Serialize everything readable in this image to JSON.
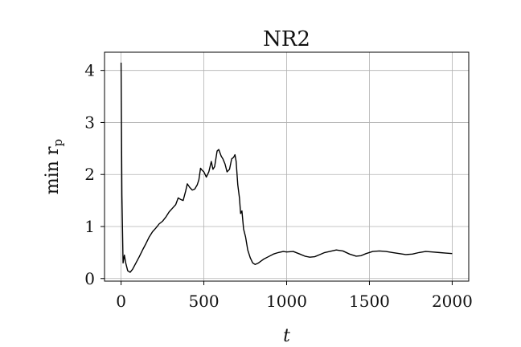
{
  "chart_data": {
    "type": "line",
    "title": "NR2",
    "xlabel": "t",
    "ylabel_main": "min r",
    "ylabel_sub": "p",
    "xlim": [
      -100,
      2100
    ],
    "ylim": [
      -0.05,
      4.35
    ],
    "xticks": [
      0,
      500,
      1000,
      1500,
      2000
    ],
    "yticks": [
      0,
      1,
      2,
      3,
      4
    ],
    "grid": true,
    "series": [
      {
        "color": "#000000",
        "points": [
          [
            0,
            4.15
          ],
          [
            5,
            1.6
          ],
          [
            12,
            0.3
          ],
          [
            20,
            0.45
          ],
          [
            28,
            0.3
          ],
          [
            40,
            0.15
          ],
          [
            55,
            0.12
          ],
          [
            70,
            0.18
          ],
          [
            90,
            0.3
          ],
          [
            110,
            0.42
          ],
          [
            130,
            0.55
          ],
          [
            150,
            0.67
          ],
          [
            170,
            0.8
          ],
          [
            190,
            0.9
          ],
          [
            210,
            0.97
          ],
          [
            230,
            1.05
          ],
          [
            250,
            1.1
          ],
          [
            270,
            1.18
          ],
          [
            290,
            1.28
          ],
          [
            310,
            1.35
          ],
          [
            330,
            1.42
          ],
          [
            345,
            1.55
          ],
          [
            360,
            1.52
          ],
          [
            375,
            1.5
          ],
          [
            390,
            1.68
          ],
          [
            400,
            1.82
          ],
          [
            415,
            1.75
          ],
          [
            430,
            1.7
          ],
          [
            445,
            1.72
          ],
          [
            460,
            1.8
          ],
          [
            470,
            1.9
          ],
          [
            480,
            2.12
          ],
          [
            490,
            2.08
          ],
          [
            500,
            2.05
          ],
          [
            515,
            1.95
          ],
          [
            530,
            2.05
          ],
          [
            545,
            2.25
          ],
          [
            555,
            2.1
          ],
          [
            565,
            2.15
          ],
          [
            580,
            2.45
          ],
          [
            590,
            2.48
          ],
          [
            605,
            2.35
          ],
          [
            615,
            2.3
          ],
          [
            628,
            2.2
          ],
          [
            640,
            2.05
          ],
          [
            655,
            2.1
          ],
          [
            668,
            2.3
          ],
          [
            680,
            2.33
          ],
          [
            688,
            2.38
          ],
          [
            695,
            2.25
          ],
          [
            705,
            1.8
          ],
          [
            715,
            1.55
          ],
          [
            722,
            1.25
          ],
          [
            730,
            1.3
          ],
          [
            740,
            0.95
          ],
          [
            752,
            0.8
          ],
          [
            765,
            0.55
          ],
          [
            780,
            0.4
          ],
          [
            795,
            0.3
          ],
          [
            810,
            0.27
          ],
          [
            830,
            0.3
          ],
          [
            860,
            0.37
          ],
          [
            890,
            0.42
          ],
          [
            920,
            0.47
          ],
          [
            950,
            0.5
          ],
          [
            980,
            0.52
          ],
          [
            1000,
            0.51
          ],
          [
            1040,
            0.52
          ],
          [
            1080,
            0.47
          ],
          [
            1110,
            0.43
          ],
          [
            1140,
            0.41
          ],
          [
            1170,
            0.42
          ],
          [
            1200,
            0.46
          ],
          [
            1230,
            0.5
          ],
          [
            1260,
            0.52
          ],
          [
            1300,
            0.55
          ],
          [
            1340,
            0.53
          ],
          [
            1380,
            0.47
          ],
          [
            1420,
            0.43
          ],
          [
            1450,
            0.44
          ],
          [
            1480,
            0.48
          ],
          [
            1520,
            0.52
          ],
          [
            1560,
            0.53
          ],
          [
            1600,
            0.52
          ],
          [
            1640,
            0.5
          ],
          [
            1680,
            0.48
          ],
          [
            1720,
            0.46
          ],
          [
            1760,
            0.47
          ],
          [
            1800,
            0.5
          ],
          [
            1840,
            0.52
          ],
          [
            1880,
            0.51
          ],
          [
            1920,
            0.5
          ],
          [
            1960,
            0.49
          ],
          [
            2000,
            0.48
          ]
        ]
      }
    ]
  }
}
